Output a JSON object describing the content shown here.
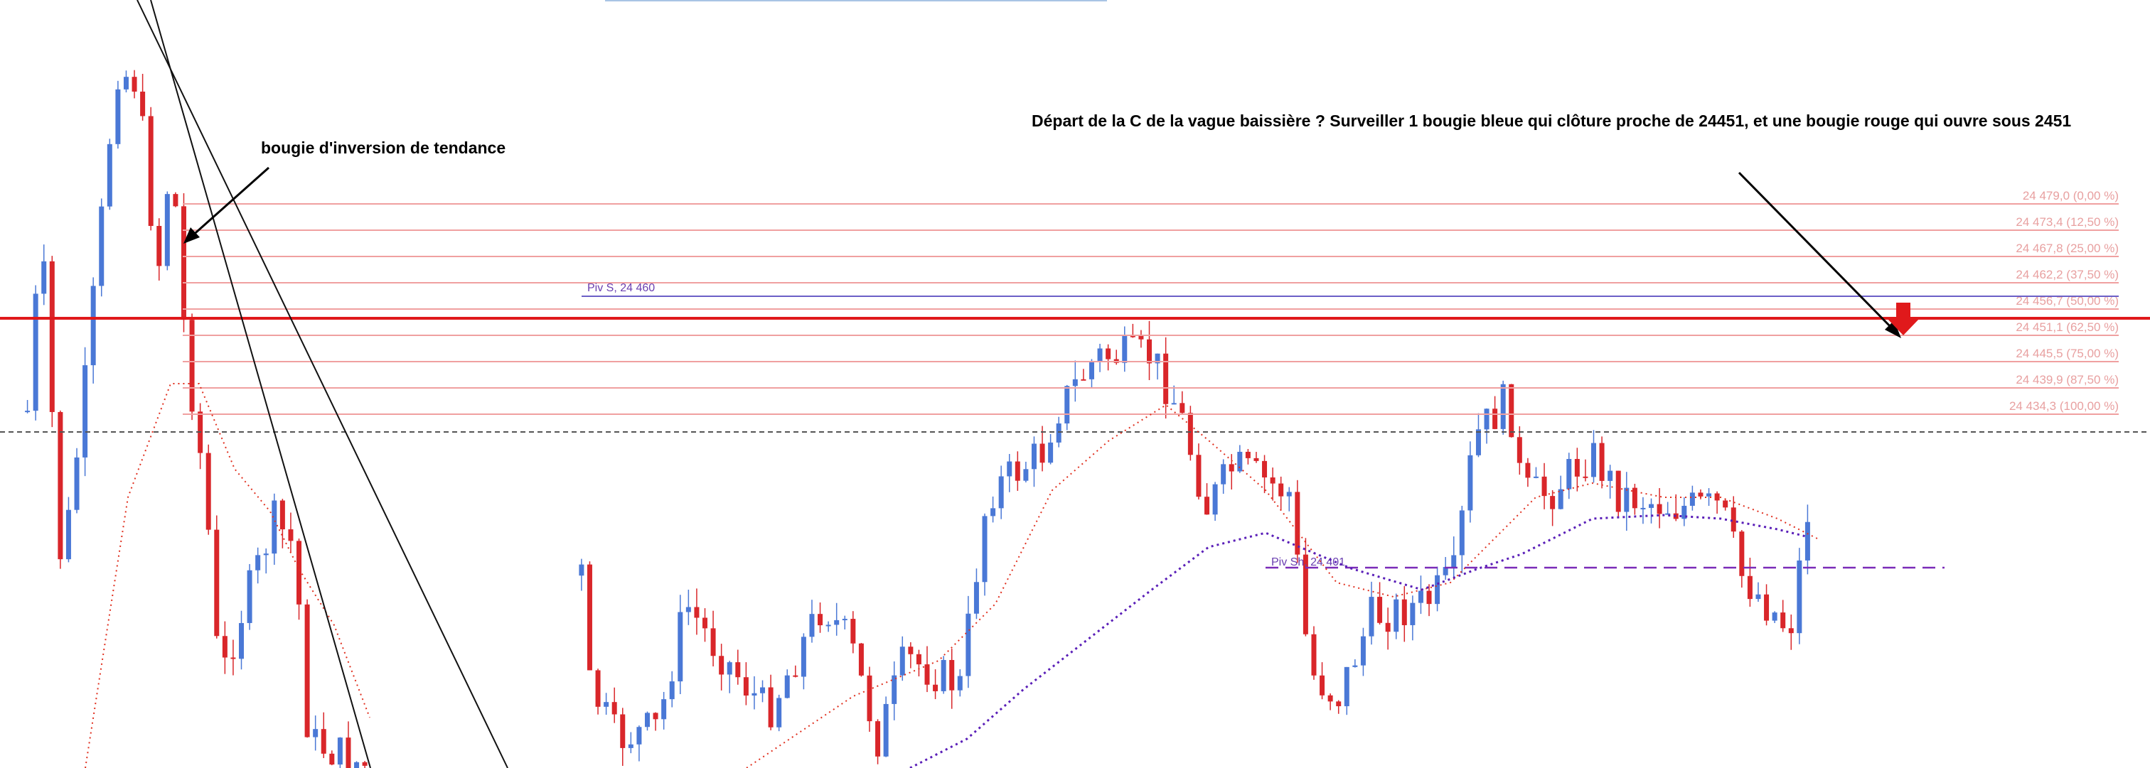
{
  "annotations": {
    "top_note": "Départ de la C de la vague baissière ? Surveiller 1 bougie bleue qui clôture proche de 24451, et une bougie rouge qui ouvre sous 2451",
    "left_note": "bougie  d'inversion de tendance"
  },
  "fib_levels": [
    "24 479,0 (0,00 %)",
    "24 473,4 (12,50 %)",
    "24 467,8 (25,00 %)",
    "24 462,2 (37,50 %)",
    "24 456,7 (50,00 %)",
    "24 451,1 (62,50 %)",
    "24 445,5 (75,00 %)",
    "24 439,9 (87,50 %)",
    "24 434,3 (100,00 %)"
  ],
  "pivots": [
    "Piv S, 24 460",
    "Piv Sh, 24 401"
  ]
}
